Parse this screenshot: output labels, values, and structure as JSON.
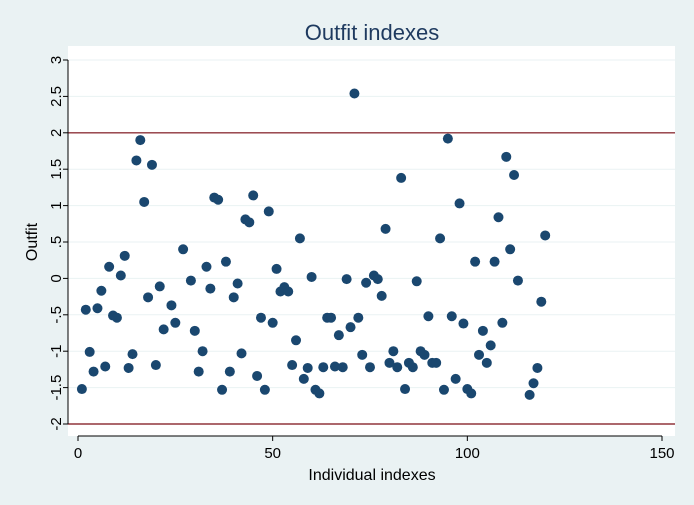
{
  "chart_data": {
    "type": "scatter",
    "title": "Outfit indexes",
    "xlabel": "Individual indexes",
    "ylabel": "Outfit",
    "xlim": [
      0,
      150
    ],
    "ylim": [
      -2,
      3
    ],
    "x_ticks": [
      {
        "value": 0,
        "label": "0"
      },
      {
        "value": 50,
        "label": "50"
      },
      {
        "value": 100,
        "label": "100"
      },
      {
        "value": 150,
        "label": "150"
      }
    ],
    "y_ticks": [
      {
        "value": -2,
        "label": "-2"
      },
      {
        "value": -1.5,
        "label": "-1.5"
      },
      {
        "value": -1,
        "label": "-1"
      },
      {
        "value": -0.5,
        "label": "-.5"
      },
      {
        "value": 0,
        "label": "0"
      },
      {
        "value": 0.5,
        "label": ".5"
      },
      {
        "value": 1,
        "label": "1"
      },
      {
        "value": 1.5,
        "label": "1.5"
      },
      {
        "value": 2,
        "label": "2"
      },
      {
        "value": 2.5,
        "label": "2.5"
      },
      {
        "value": 3,
        "label": "3"
      }
    ],
    "reference_lines": [
      2,
      -2
    ],
    "grid": true,
    "colors": {
      "background": "#eaf2f3",
      "plot_background": "#ffffff",
      "points": "#1a476f",
      "reference_line": "#90353b",
      "grid": "#eaf2f3",
      "title": "#1e3a5f"
    },
    "points": [
      [
        1,
        -1.52
      ],
      [
        2,
        -0.43
      ],
      [
        3,
        -1.01
      ],
      [
        4,
        -1.28
      ],
      [
        5,
        -0.41
      ],
      [
        6,
        -0.17
      ],
      [
        7,
        -1.21
      ],
      [
        8,
        0.16
      ],
      [
        9,
        -0.51
      ],
      [
        10,
        -0.54
      ],
      [
        11,
        0.04
      ],
      [
        12,
        0.31
      ],
      [
        13,
        -1.23
      ],
      [
        14,
        -1.04
      ],
      [
        15,
        1.62
      ],
      [
        16,
        1.9
      ],
      [
        17,
        1.05
      ],
      [
        18,
        -0.26
      ],
      [
        19,
        1.56
      ],
      [
        20,
        -1.19
      ],
      [
        21,
        -0.11
      ],
      [
        22,
        -0.7
      ],
      [
        24,
        -0.37
      ],
      [
        25,
        -0.61
      ],
      [
        27,
        0.4
      ],
      [
        29,
        -0.03
      ],
      [
        30,
        -0.72
      ],
      [
        31,
        -1.28
      ],
      [
        32,
        -1.0
      ],
      [
        33,
        0.16
      ],
      [
        34,
        -0.14
      ],
      [
        35,
        1.11
      ],
      [
        36,
        1.08
      ],
      [
        37,
        -1.53
      ],
      [
        38,
        0.23
      ],
      [
        39,
        -1.28
      ],
      [
        40,
        -0.26
      ],
      [
        41,
        -0.07
      ],
      [
        42,
        -1.03
      ],
      [
        43,
        0.81
      ],
      [
        44,
        0.77
      ],
      [
        45,
        1.14
      ],
      [
        46,
        -1.34
      ],
      [
        47,
        -0.54
      ],
      [
        48,
        -1.53
      ],
      [
        49,
        0.92
      ],
      [
        50,
        -0.61
      ],
      [
        51,
        0.13
      ],
      [
        52,
        -0.18
      ],
      [
        53,
        -0.12
      ],
      [
        54,
        -0.18
      ],
      [
        55,
        -1.19
      ],
      [
        56,
        -0.85
      ],
      [
        57,
        0.55
      ],
      [
        58,
        -1.38
      ],
      [
        59,
        -1.23
      ],
      [
        60,
        0.02
      ],
      [
        61,
        -1.53
      ],
      [
        62,
        -1.58
      ],
      [
        63,
        -1.22
      ],
      [
        64,
        -0.54
      ],
      [
        65,
        -0.54
      ],
      [
        66,
        -1.21
      ],
      [
        67,
        -0.78
      ],
      [
        68,
        -1.22
      ],
      [
        69,
        -0.01
      ],
      [
        70,
        -0.67
      ],
      [
        71,
        2.54
      ],
      [
        72,
        -0.54
      ],
      [
        73,
        -1.05
      ],
      [
        74,
        -0.06
      ],
      [
        75,
        -1.22
      ],
      [
        76,
        0.04
      ],
      [
        77,
        -0.01
      ],
      [
        78,
        -0.24
      ],
      [
        79,
        0.68
      ],
      [
        80,
        -1.16
      ],
      [
        81,
        -1.0
      ],
      [
        82,
        -1.22
      ],
      [
        83,
        1.38
      ],
      [
        84,
        -1.52
      ],
      [
        85,
        -1.16
      ],
      [
        86,
        -1.22
      ],
      [
        87,
        -0.04
      ],
      [
        88,
        -1.0
      ],
      [
        89,
        -1.05
      ],
      [
        90,
        -0.52
      ],
      [
        91,
        -1.16
      ],
      [
        92,
        -1.16
      ],
      [
        93,
        0.55
      ],
      [
        94,
        -1.53
      ],
      [
        95,
        1.92
      ],
      [
        96,
        -0.52
      ],
      [
        97,
        -1.38
      ],
      [
        98,
        1.03
      ],
      [
        99,
        -0.62
      ],
      [
        100,
        -1.52
      ],
      [
        101,
        -1.58
      ],
      [
        102,
        0.23
      ],
      [
        103,
        -1.05
      ],
      [
        104,
        -0.72
      ],
      [
        105,
        -1.16
      ],
      [
        106,
        -0.92
      ],
      [
        107,
        0.23
      ],
      [
        108,
        0.84
      ],
      [
        109,
        -0.61
      ],
      [
        110,
        1.67
      ],
      [
        111,
        0.4
      ],
      [
        112,
        1.42
      ],
      [
        113,
        -0.03
      ],
      [
        116,
        -1.6
      ],
      [
        117,
        -1.44
      ],
      [
        118,
        -1.23
      ],
      [
        119,
        -0.32
      ],
      [
        120,
        0.59
      ]
    ]
  }
}
